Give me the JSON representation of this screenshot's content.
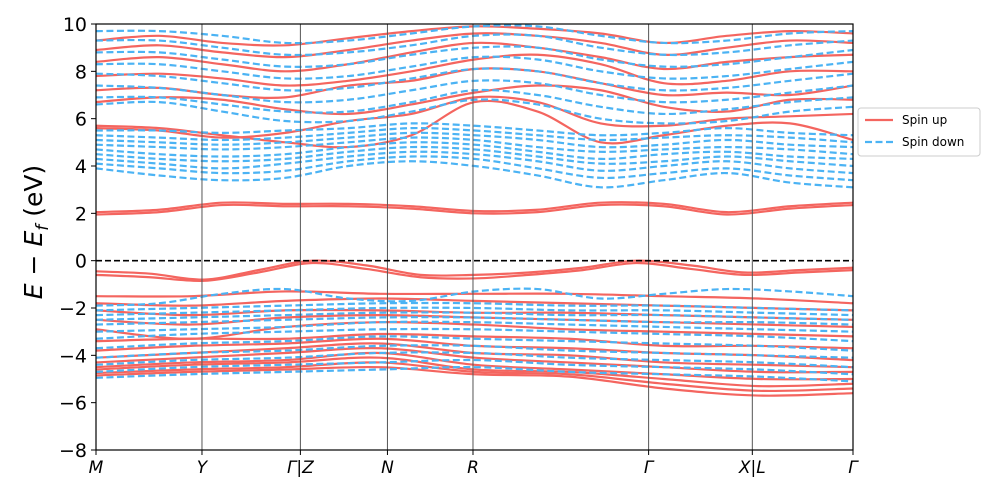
{
  "chart_data": {
    "type": "line",
    "title": "",
    "xlabel": "",
    "ylabel": {
      "main": "E − E",
      "sub": "f",
      "unit": " (eV)"
    },
    "ylim": [
      -8,
      10
    ],
    "yticks": [
      -8,
      -6,
      -4,
      -2,
      0,
      2,
      4,
      6,
      8,
      10
    ],
    "ytick_labels": [
      "−8",
      "−6",
      "−4",
      "−2",
      "0",
      "2",
      "4",
      "6",
      "8",
      "10"
    ],
    "kpath": [
      {
        "label": "M",
        "pos": 0.0
      },
      {
        "label": "Y",
        "pos": 0.14
      },
      {
        "label": "Γ|Z",
        "pos": 0.27
      },
      {
        "label": "N",
        "pos": 0.385
      },
      {
        "label": "R",
        "pos": 0.498
      },
      {
        "label": "Γ",
        "pos": 0.73
      },
      {
        "label": "X|L",
        "pos": 0.867
      },
      {
        "label": "Γ",
        "pos": 1.0
      }
    ],
    "fermi_level": 0,
    "grid": false,
    "legend_position": "right-outside-top",
    "series": [
      {
        "name": "Spin up",
        "color": "#f4655f",
        "style": "solid",
        "bands": [
          [
            -4.85,
            -4.7,
            -4.6,
            -4.5,
            -4.8,
            -4.9,
            -5.4,
            -5.7,
            -5.6
          ],
          [
            -4.75,
            -4.6,
            -4.5,
            -4.3,
            -4.7,
            -4.8,
            -5.2,
            -5.5,
            -5.4
          ],
          [
            -4.6,
            -4.4,
            -4.3,
            -4.1,
            -4.6,
            -4.7,
            -5.0,
            -5.3,
            -5.2
          ],
          [
            -4.5,
            -4.3,
            -4.2,
            -3.9,
            -4.4,
            -4.6,
            -4.8,
            -5.0,
            -5.0
          ],
          [
            -4.3,
            -4.1,
            -3.9,
            -3.7,
            -4.1,
            -4.3,
            -4.5,
            -4.7,
            -4.7
          ],
          [
            -4.1,
            -3.9,
            -3.7,
            -3.5,
            -3.9,
            -4.0,
            -4.3,
            -4.4,
            -4.5
          ],
          [
            -3.8,
            -3.6,
            -3.5,
            -3.3,
            -3.6,
            -3.7,
            -3.9,
            -4.0,
            -4.2
          ],
          [
            -3.4,
            -3.3,
            -3.3,
            -3.1,
            -3.2,
            -3.3,
            -3.6,
            -3.6,
            -3.7
          ],
          [
            -2.9,
            -3.3,
            -2.8,
            -2.6,
            -2.7,
            -2.9,
            -3.0,
            -3.1,
            -3.2
          ],
          [
            -2.5,
            -2.7,
            -2.4,
            -2.3,
            -2.4,
            -2.5,
            -2.6,
            -2.7,
            -2.8
          ],
          [
            -2.1,
            -2.3,
            -2.1,
            -2.1,
            -2.2,
            -2.2,
            -2.3,
            -2.4,
            -2.5
          ],
          [
            -1.8,
            -1.9,
            -1.7,
            -1.6,
            -1.7,
            -1.8,
            -1.9,
            -2.0,
            -2.1
          ],
          [
            -1.5,
            -1.5,
            -1.3,
            -1.4,
            -1.4,
            -1.4,
            -1.5,
            -1.6,
            -1.8
          ],
          [
            -0.45,
            -0.55,
            -0.8,
            -0.4,
            0.0,
            -0.2,
            -0.6,
            -0.6,
            -0.5,
            -0.3,
            0.0,
            -0.2,
            -0.5,
            -0.4,
            -0.3
          ],
          [
            -0.6,
            -0.7,
            -0.85,
            -0.5,
            -0.1,
            -0.35,
            -0.7,
            -0.75,
            -0.6,
            -0.4,
            -0.1,
            -0.35,
            -0.6,
            -0.5,
            -0.4
          ],
          [
            1.95,
            2.05,
            2.35,
            2.3,
            2.3,
            2.2,
            2.0,
            2.05,
            2.35,
            2.3,
            1.95,
            2.2,
            2.35
          ],
          [
            2.05,
            2.15,
            2.45,
            2.4,
            2.4,
            2.3,
            2.1,
            2.15,
            2.45,
            2.4,
            2.05,
            2.3,
            2.45
          ],
          [
            5.7,
            5.6,
            5.3,
            5.0,
            4.8,
            5.3,
            6.7,
            6.3,
            5.0,
            5.3,
            5.7,
            5.8,
            5.1
          ],
          [
            5.6,
            5.5,
            5.2,
            5.4,
            5.9,
            6.2,
            6.9,
            6.7,
            5.8,
            5.7,
            6.0,
            6.1,
            6.2
          ],
          [
            6.7,
            6.9,
            6.8,
            6.4,
            6.2,
            6.6,
            7.1,
            7.4,
            7.2,
            6.5,
            6.3,
            6.8,
            6.8
          ],
          [
            7.2,
            7.3,
            7.0,
            6.9,
            7.4,
            7.6,
            8.1,
            8.0,
            7.5,
            7.0,
            7.1,
            7.0,
            7.4
          ],
          [
            7.8,
            7.9,
            7.7,
            7.4,
            7.6,
            8.0,
            8.5,
            8.7,
            8.3,
            7.5,
            7.6,
            8.0,
            8.0
          ],
          [
            8.4,
            8.6,
            8.3,
            8.0,
            8.3,
            8.8,
            9.2,
            9.0,
            8.6,
            8.1,
            8.4,
            8.6,
            8.7
          ],
          [
            8.9,
            9.1,
            8.8,
            8.6,
            8.9,
            9.3,
            9.6,
            9.5,
            9.2,
            8.7,
            9.0,
            9.3,
            9.2
          ],
          [
            9.3,
            9.5,
            9.2,
            9.1,
            9.4,
            9.7,
            9.9,
            9.8,
            9.6,
            9.2,
            9.5,
            9.7,
            9.6
          ]
        ]
      },
      {
        "name": "Spin down",
        "color": "#4bb3f4",
        "style": "dashed",
        "bands": [
          [
            -4.95,
            -4.8,
            -4.7,
            -4.6,
            -4.5,
            -4.7,
            -4.8,
            -4.9,
            -5.1
          ],
          [
            -4.7,
            -4.5,
            -4.4,
            -4.3,
            -4.2,
            -4.4,
            -4.5,
            -4.6,
            -4.8
          ],
          [
            -4.4,
            -4.2,
            -4.1,
            -3.9,
            -3.9,
            -4.1,
            -4.2,
            -4.3,
            -4.5
          ],
          [
            -4.1,
            -3.9,
            -3.8,
            -3.6,
            -3.6,
            -3.8,
            -3.9,
            -4.0,
            -4.1
          ],
          [
            -3.7,
            -3.5,
            -3.4,
            -3.2,
            -3.3,
            -3.4,
            -3.5,
            -3.6,
            -3.8
          ],
          [
            -3.3,
            -3.1,
            -3.0,
            -2.9,
            -2.9,
            -3.0,
            -3.1,
            -3.2,
            -3.4
          ],
          [
            -3.0,
            -2.9,
            -2.8,
            -2.6,
            -2.6,
            -2.7,
            -2.8,
            -2.9,
            -3.0
          ],
          [
            -2.7,
            -2.6,
            -2.5,
            -2.4,
            -2.4,
            -2.5,
            -2.6,
            -2.6,
            -2.7
          ],
          [
            -2.5,
            -2.4,
            -2.3,
            -2.2,
            -2.2,
            -2.3,
            -2.3,
            -2.4,
            -2.5
          ],
          [
            -2.3,
            -2.2,
            -2.1,
            -2.0,
            -2.0,
            -2.1,
            -2.1,
            -2.2,
            -2.3
          ],
          [
            -2.1,
            -2.0,
            -1.9,
            -1.8,
            -1.8,
            -1.9,
            -1.9,
            -2.0,
            -2.1
          ],
          [
            -1.9,
            -1.8,
            -1.4,
            -1.2,
            -1.6,
            -1.7,
            -1.3,
            -1.2,
            -1.6,
            -1.4,
            -1.2,
            -1.3,
            -1.5
          ],
          [
            3.9,
            3.6,
            3.4,
            3.5,
            4.0,
            4.2,
            4.0,
            3.6,
            3.1,
            3.4,
            3.7,
            3.3,
            3.1
          ],
          [
            4.1,
            3.9,
            3.7,
            3.8,
            4.2,
            4.4,
            4.3,
            3.9,
            3.5,
            3.7,
            3.9,
            3.6,
            3.4
          ],
          [
            4.3,
            4.1,
            3.9,
            4.1,
            4.4,
            4.6,
            4.5,
            4.2,
            3.8,
            4.0,
            4.2,
            3.9,
            3.7
          ],
          [
            4.5,
            4.3,
            4.2,
            4.3,
            4.6,
            4.8,
            4.7,
            4.4,
            4.1,
            4.2,
            4.4,
            4.2,
            4.0
          ],
          [
            4.7,
            4.5,
            4.4,
            4.5,
            4.8,
            5.0,
            4.9,
            4.6,
            4.3,
            4.5,
            4.6,
            4.4,
            4.3
          ],
          [
            4.9,
            4.8,
            4.7,
            4.8,
            5.0,
            5.2,
            5.1,
            4.8,
            4.6,
            4.7,
            4.8,
            4.7,
            4.5
          ],
          [
            5.1,
            5.0,
            4.9,
            5.0,
            5.2,
            5.4,
            5.3,
            5.1,
            4.8,
            4.9,
            5.1,
            4.9,
            4.8
          ],
          [
            5.3,
            5.2,
            5.1,
            5.2,
            5.4,
            5.6,
            5.5,
            5.3,
            5.1,
            5.2,
            5.3,
            5.2,
            5.0
          ],
          [
            5.5,
            5.5,
            5.4,
            5.5,
            5.6,
            5.8,
            5.7,
            5.5,
            5.3,
            5.4,
            5.6,
            5.4,
            5.3
          ],
          [
            6.6,
            6.7,
            6.3,
            5.9,
            5.9,
            6.3,
            6.8,
            6.6,
            6.0,
            5.8,
            5.9,
            6.3,
            6.5
          ],
          [
            6.9,
            6.9,
            6.6,
            6.3,
            6.3,
            6.7,
            7.2,
            7.0,
            6.5,
            6.2,
            6.4,
            6.7,
            6.9
          ],
          [
            7.4,
            7.3,
            7.0,
            6.7,
            6.8,
            7.2,
            7.6,
            7.5,
            7.0,
            6.7,
            6.8,
            7.1,
            7.4
          ],
          [
            7.9,
            7.8,
            7.5,
            7.2,
            7.3,
            7.7,
            8.1,
            8.0,
            7.5,
            7.2,
            7.3,
            7.6,
            7.9
          ],
          [
            8.3,
            8.3,
            8.0,
            7.7,
            7.8,
            8.2,
            8.6,
            8.5,
            8.0,
            7.7,
            7.8,
            8.1,
            8.4
          ],
          [
            8.8,
            8.8,
            8.5,
            8.2,
            8.3,
            8.7,
            9.0,
            9.0,
            8.5,
            8.2,
            8.3,
            8.6,
            8.9
          ],
          [
            9.3,
            9.3,
            9.0,
            8.7,
            8.8,
            9.1,
            9.5,
            9.5,
            9.0,
            8.7,
            8.8,
            9.1,
            9.3
          ],
          [
            9.7,
            9.7,
            9.5,
            9.2,
            9.3,
            9.6,
            9.9,
            9.9,
            9.5,
            9.2,
            9.3,
            9.6,
            9.7
          ]
        ]
      }
    ]
  }
}
